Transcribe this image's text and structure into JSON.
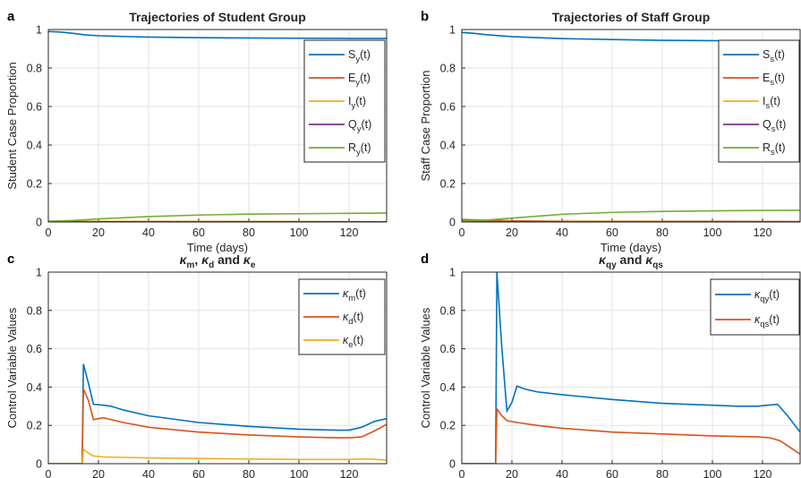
{
  "palette": {
    "blue": "#0072BD",
    "orange": "#D95319",
    "yellow": "#EDB120",
    "purple": "#7E2F8E",
    "green": "#77AC30"
  },
  "chart_data": [
    {
      "type": "line",
      "panel_tag": "a",
      "title": "Trajectories of Student Group",
      "xlabel": "Time (days)",
      "ylabel": "Student Case Proportion",
      "xlim": [
        0,
        135
      ],
      "ylim": [
        0,
        1
      ],
      "xticks": [
        "0",
        "20",
        "40",
        "60",
        "80",
        "100",
        "120"
      ],
      "yticks": [
        "0",
        "0.2",
        "0.4",
        "0.6",
        "0.8",
        "1"
      ],
      "grid": true,
      "legend_position": "upper right",
      "series": [
        {
          "name": "S_y(t)",
          "base": "S",
          "sub": "y",
          "color": "#0072BD",
          "points": [
            [
              0,
              0.99
            ],
            [
              5,
              0.987
            ],
            [
              10,
              0.98
            ],
            [
              15,
              0.972
            ],
            [
              20,
              0.968
            ],
            [
              30,
              0.964
            ],
            [
              40,
              0.961
            ],
            [
              60,
              0.958
            ],
            [
              80,
              0.956
            ],
            [
              100,
              0.955
            ],
            [
              120,
              0.954
            ],
            [
              135,
              0.954
            ]
          ]
        },
        {
          "name": "E_y(t)",
          "base": "E",
          "sub": "y",
          "color": "#D95319",
          "points": [
            [
              0,
              0.004
            ],
            [
              135,
              0.001
            ]
          ]
        },
        {
          "name": "I_y(t)",
          "base": "I",
          "sub": "y",
          "color": "#EDB120",
          "points": [
            [
              0,
              0.003
            ],
            [
              135,
              0.001
            ]
          ]
        },
        {
          "name": "Q_y(t)",
          "base": "Q",
          "sub": "y",
          "color": "#7E2F8E",
          "points": [
            [
              0,
              0.001
            ],
            [
              135,
              0.001
            ]
          ]
        },
        {
          "name": "R_y(t)",
          "base": "R",
          "sub": "y",
          "color": "#77AC30",
          "points": [
            [
              0,
              0.004
            ],
            [
              10,
              0.008
            ],
            [
              20,
              0.016
            ],
            [
              40,
              0.028
            ],
            [
              60,
              0.036
            ],
            [
              80,
              0.041
            ],
            [
              100,
              0.043
            ],
            [
              120,
              0.045
            ],
            [
              135,
              0.046
            ]
          ]
        }
      ]
    },
    {
      "type": "line",
      "panel_tag": "b",
      "title": "Trajectories of Staff Group",
      "xlabel": "Time (days)",
      "ylabel": "Staff Case Proportion",
      "xlim": [
        0,
        135
      ],
      "ylim": [
        0,
        1
      ],
      "xticks": [
        "0",
        "20",
        "40",
        "60",
        "80",
        "100",
        "120"
      ],
      "yticks": [
        "0",
        "0.2",
        "0.4",
        "0.6",
        "0.8",
        "1"
      ],
      "grid": true,
      "legend_position": "upper right",
      "series": [
        {
          "name": "S_s(t)",
          "base": "S",
          "sub": "s",
          "color": "#0072BD",
          "points": [
            [
              0,
              0.985
            ],
            [
              5,
              0.98
            ],
            [
              10,
              0.973
            ],
            [
              20,
              0.963
            ],
            [
              30,
              0.958
            ],
            [
              40,
              0.953
            ],
            [
              60,
              0.948
            ],
            [
              80,
              0.944
            ],
            [
              100,
              0.942
            ],
            [
              120,
              0.94
            ],
            [
              135,
              0.94
            ]
          ]
        },
        {
          "name": "E_s(t)",
          "base": "E",
          "sub": "s",
          "color": "#D95319",
          "points": [
            [
              0,
              0.013
            ],
            [
              10,
              0.009
            ],
            [
              20,
              0.006
            ],
            [
              40,
              0.004
            ],
            [
              135,
              0.002
            ]
          ]
        },
        {
          "name": "I_s(t)",
          "base": "I",
          "sub": "s",
          "color": "#EDB120",
          "points": [
            [
              0,
              0.003
            ],
            [
              135,
              0.001
            ]
          ]
        },
        {
          "name": "Q_s(t)",
          "base": "Q",
          "sub": "s",
          "color": "#7E2F8E",
          "points": [
            [
              0,
              0.002
            ],
            [
              135,
              0.001
            ]
          ]
        },
        {
          "name": "R_s(t)",
          "base": "R",
          "sub": "s",
          "color": "#77AC30",
          "points": [
            [
              0,
              0.006
            ],
            [
              10,
              0.01
            ],
            [
              20,
              0.02
            ],
            [
              30,
              0.03
            ],
            [
              40,
              0.04
            ],
            [
              60,
              0.05
            ],
            [
              80,
              0.055
            ],
            [
              100,
              0.058
            ],
            [
              120,
              0.06
            ],
            [
              135,
              0.061
            ]
          ]
        }
      ]
    },
    {
      "type": "line",
      "panel_tag": "c",
      "title": "κm, κd and κe",
      "title_parts": [
        {
          "t": "κ",
          "i": true
        },
        {
          "t": "m",
          "sub": true
        },
        {
          "t": ", "
        },
        {
          "t": "κ",
          "i": true
        },
        {
          "t": "d",
          "sub": true
        },
        {
          "t": " and "
        },
        {
          "t": "κ",
          "i": true
        },
        {
          "t": "e",
          "sub": true
        }
      ],
      "xlabel": "Time (days)",
      "ylabel": "Control Variable Values",
      "xlim": [
        0,
        135
      ],
      "ylim": [
        0,
        1
      ],
      "xticks": [
        "0",
        "20",
        "40",
        "60",
        "80",
        "100",
        "120"
      ],
      "yticks": [
        "0",
        "0.2",
        "0.4",
        "0.6",
        "0.8",
        "1"
      ],
      "grid": true,
      "legend_position": "upper right",
      "series": [
        {
          "name": "κm(t)",
          "base": "κ",
          "sub": "m",
          "color": "#0072BD",
          "points": [
            [
              0,
              0
            ],
            [
              13.5,
              0
            ],
            [
              14,
              0.52
            ],
            [
              16,
              0.42
            ],
            [
              18,
              0.31
            ],
            [
              22,
              0.305
            ],
            [
              25,
              0.3
            ],
            [
              30,
              0.28
            ],
            [
              40,
              0.25
            ],
            [
              60,
              0.215
            ],
            [
              80,
              0.195
            ],
            [
              100,
              0.18
            ],
            [
              115,
              0.175
            ],
            [
              120,
              0.175
            ],
            [
              125,
              0.19
            ],
            [
              130,
              0.22
            ],
            [
              135,
              0.235
            ]
          ]
        },
        {
          "name": "κd(t)",
          "base": "κ",
          "sub": "d",
          "color": "#D95319",
          "points": [
            [
              0,
              0
            ],
            [
              13.5,
              0
            ],
            [
              14,
              0.39
            ],
            [
              16,
              0.33
            ],
            [
              18,
              0.23
            ],
            [
              20,
              0.235
            ],
            [
              22,
              0.24
            ],
            [
              25,
              0.23
            ],
            [
              30,
              0.215
            ],
            [
              40,
              0.19
            ],
            [
              60,
              0.165
            ],
            [
              80,
              0.15
            ],
            [
              100,
              0.14
            ],
            [
              115,
              0.135
            ],
            [
              120,
              0.135
            ],
            [
              125,
              0.14
            ],
            [
              130,
              0.17
            ],
            [
              135,
              0.205
            ]
          ]
        },
        {
          "name": "κe(t)",
          "base": "κ",
          "sub": "e",
          "color": "#EDB120",
          "points": [
            [
              0,
              0
            ],
            [
              13.5,
              0
            ],
            [
              14,
              0.075
            ],
            [
              16,
              0.055
            ],
            [
              18,
              0.04
            ],
            [
              22,
              0.035
            ],
            [
              40,
              0.03
            ],
            [
              60,
              0.027
            ],
            [
              80,
              0.024
            ],
            [
              100,
              0.022
            ],
            [
              120,
              0.022
            ],
            [
              126,
              0.025
            ],
            [
              130,
              0.023
            ],
            [
              135,
              0.018
            ]
          ]
        }
      ]
    },
    {
      "type": "line",
      "panel_tag": "d",
      "title": "κqy and κqs",
      "title_parts": [
        {
          "t": "κ",
          "i": true
        },
        {
          "t": "qy",
          "sub": true
        },
        {
          "t": " and "
        },
        {
          "t": "κ",
          "i": true
        },
        {
          "t": "qs",
          "sub": true
        }
      ],
      "xlabel": "Time (days)",
      "ylabel": "Control Variable Values",
      "xlim": [
        0,
        135
      ],
      "ylim": [
        0,
        1
      ],
      "xticks": [
        "0",
        "20",
        "40",
        "60",
        "80",
        "100",
        "120"
      ],
      "yticks": [
        "0",
        "0.2",
        "0.4",
        "0.6",
        "0.8",
        "1"
      ],
      "grid": true,
      "legend_position": "upper right",
      "series": [
        {
          "name": "κqy(t)",
          "base": "κ",
          "sub": "qy",
          "color": "#0072BD",
          "points": [
            [
              0,
              0
            ],
            [
              13.5,
              0
            ],
            [
              14,
              1.0
            ],
            [
              16,
              0.6
            ],
            [
              18,
              0.275
            ],
            [
              20,
              0.32
            ],
            [
              22,
              0.405
            ],
            [
              25,
              0.39
            ],
            [
              30,
              0.375
            ],
            [
              40,
              0.36
            ],
            [
              60,
              0.335
            ],
            [
              80,
              0.315
            ],
            [
              100,
              0.305
            ],
            [
              110,
              0.3
            ],
            [
              118,
              0.3
            ],
            [
              122,
              0.305
            ],
            [
              126,
              0.31
            ],
            [
              130,
              0.25
            ],
            [
              135,
              0.165
            ]
          ]
        },
        {
          "name": "κqs(t)",
          "base": "κ",
          "sub": "qs",
          "color": "#D95319",
          "points": [
            [
              0,
              0
            ],
            [
              13.5,
              0
            ],
            [
              14,
              0.285
            ],
            [
              16,
              0.25
            ],
            [
              18,
              0.225
            ],
            [
              22,
              0.215
            ],
            [
              30,
              0.2
            ],
            [
              40,
              0.185
            ],
            [
              60,
              0.165
            ],
            [
              80,
              0.155
            ],
            [
              100,
              0.145
            ],
            [
              118,
              0.14
            ],
            [
              123,
              0.135
            ],
            [
              127,
              0.12
            ],
            [
              131,
              0.085
            ],
            [
              135,
              0.05
            ]
          ]
        }
      ]
    }
  ]
}
